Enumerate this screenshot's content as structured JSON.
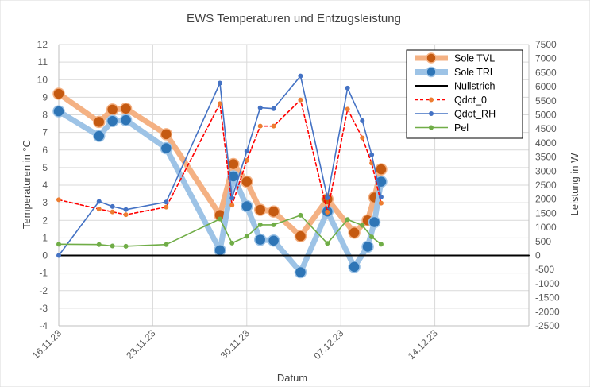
{
  "chart_data": {
    "type": "line",
    "title": "EWS Temperaturen und  Entzugsleistung",
    "xlabel": "Datum",
    "ylabel": "Temperaturen in °C",
    "y2label": "Leistung in W",
    "ylim": [
      -4,
      12
    ],
    "y2lim": [
      -2500,
      7500
    ],
    "x_ticks": [
      "16.11.23",
      "23.11.23",
      "30.11.23",
      "07.12.23",
      "14.12.23"
    ],
    "y_ticks": [
      "-4",
      "-3",
      "-2",
      "-1",
      "0",
      "1",
      "2",
      "3",
      "4",
      "5",
      "6",
      "7",
      "8",
      "9",
      "10",
      "11",
      "12"
    ],
    "y2_ticks": [
      "-2500",
      "-2000",
      "-1500",
      "-1000",
      "-500",
      "0",
      "500",
      "1000",
      "1500",
      "2000",
      "2500",
      "3000",
      "3500",
      "4000",
      "4500",
      "5000",
      "5500",
      "6000",
      "6500",
      "7000",
      "7500"
    ],
    "grid": true,
    "legend_position": "top-right",
    "series": [
      {
        "name": "Sole TVL",
        "axis": "left",
        "color": "#f4b183",
        "marker_color": "#c55a11",
        "style": "thick",
        "points": [
          [
            "2023-11-16",
            9.2
          ],
          [
            "2023-11-19",
            7.6
          ],
          [
            "2023-11-20",
            8.3
          ],
          [
            "2023-11-21",
            8.35
          ],
          [
            "2023-11-24",
            6.9
          ],
          [
            "2023-11-28",
            2.3
          ],
          [
            "2023-11-29",
            5.2
          ],
          [
            "2023-11-30",
            4.2
          ],
          [
            "2023-12-01",
            2.6
          ],
          [
            "2023-12-02",
            2.5
          ],
          [
            "2023-12-04",
            1.1
          ],
          [
            "2023-12-06",
            3.2
          ],
          [
            "2023-12-08",
            1.3
          ],
          [
            "2023-12-09",
            2.0
          ],
          [
            "2023-12-09.5",
            3.3
          ],
          [
            "2023-12-10",
            4.9
          ]
        ]
      },
      {
        "name": "Sole TRL",
        "axis": "left",
        "color": "#9dc3e6",
        "marker_color": "#2e75b6",
        "style": "thick",
        "points": [
          [
            "2023-11-16",
            8.2
          ],
          [
            "2023-11-19",
            6.8
          ],
          [
            "2023-11-20",
            7.65
          ],
          [
            "2023-11-21",
            7.7
          ],
          [
            "2023-11-24",
            6.1
          ],
          [
            "2023-11-28",
            0.3
          ],
          [
            "2023-11-29",
            4.5
          ],
          [
            "2023-11-30",
            2.8
          ],
          [
            "2023-12-01",
            0.9
          ],
          [
            "2023-12-02",
            0.85
          ],
          [
            "2023-12-04",
            -0.95
          ],
          [
            "2023-12-06",
            2.5
          ],
          [
            "2023-12-08",
            -0.65
          ],
          [
            "2023-12-09",
            0.5
          ],
          [
            "2023-12-09.5",
            1.9
          ],
          [
            "2023-12-10",
            4.2
          ]
        ]
      },
      {
        "name": "Nullstrich",
        "axis": "left",
        "color": "#000000",
        "style": "line",
        "points": [
          [
            "2023-11-16",
            0
          ],
          [
            "2023-12-21",
            0
          ]
        ]
      },
      {
        "name": "Qdot_0",
        "axis": "right",
        "color": "#ff0000",
        "marker_color": "#ed7d31",
        "style": "dashed",
        "points": [
          [
            "2023-11-16",
            1980
          ],
          [
            "2023-11-19",
            1650
          ],
          [
            "2023-11-20",
            1550
          ],
          [
            "2023-11-21",
            1450
          ],
          [
            "2023-11-24",
            1720
          ],
          [
            "2023-11-28",
            5400
          ],
          [
            "2023-11-28.9",
            1790
          ],
          [
            "2023-11-30",
            3380
          ],
          [
            "2023-12-01",
            4600
          ],
          [
            "2023-12-02",
            4600
          ],
          [
            "2023-12-04",
            5530
          ],
          [
            "2023-12-06",
            1540
          ],
          [
            "2023-12-07.5",
            5200
          ],
          [
            "2023-12-08.6",
            4180
          ],
          [
            "2023-12-09.3",
            3280
          ],
          [
            "2023-12-10",
            1860
          ]
        ]
      },
      {
        "name": "Qdot_RH",
        "axis": "right",
        "color": "#4472c4",
        "marker_color": "#4472c4",
        "style": "line",
        "points": [
          [
            "2023-11-16",
            0
          ],
          [
            "2023-11-19",
            1920
          ],
          [
            "2023-11-20",
            1740
          ],
          [
            "2023-11-21",
            1630
          ],
          [
            "2023-11-24",
            1900
          ],
          [
            "2023-11-28",
            6130
          ],
          [
            "2023-11-28.9",
            2040
          ],
          [
            "2023-11-30",
            3710
          ],
          [
            "2023-12-01",
            5250
          ],
          [
            "2023-12-02",
            5220
          ],
          [
            "2023-12-04",
            6380
          ],
          [
            "2023-12-06",
            2050
          ],
          [
            "2023-12-07.5",
            5950
          ],
          [
            "2023-12-08.6",
            4790
          ],
          [
            "2023-12-09.3",
            3580
          ],
          [
            "2023-12-10",
            2080
          ]
        ]
      },
      {
        "name": "Pel",
        "axis": "right",
        "color": "#70ad47",
        "marker_color": "#70ad47",
        "style": "line",
        "points": [
          [
            "2023-11-16",
            400
          ],
          [
            "2023-11-19",
            390
          ],
          [
            "2023-11-20",
            340
          ],
          [
            "2023-11-21",
            330
          ],
          [
            "2023-11-24",
            390
          ],
          [
            "2023-11-28",
            1300
          ],
          [
            "2023-11-28.9",
            440
          ],
          [
            "2023-11-30",
            680
          ],
          [
            "2023-12-01",
            1090
          ],
          [
            "2023-12-02",
            1090
          ],
          [
            "2023-12-04",
            1430
          ],
          [
            "2023-12-06",
            430
          ],
          [
            "2023-12-07.5",
            1280
          ],
          [
            "2023-12-08.6",
            1070
          ],
          [
            "2023-12-09.3",
            660
          ],
          [
            "2023-12-10",
            400
          ]
        ]
      }
    ]
  }
}
